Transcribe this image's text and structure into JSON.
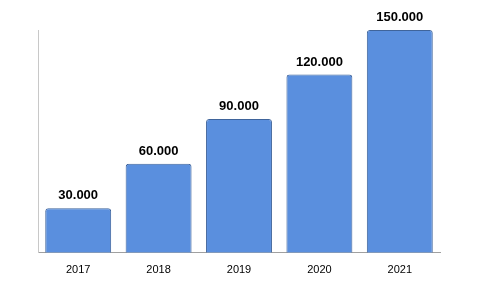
{
  "chart_data": {
    "type": "bar",
    "categories": [
      "2017",
      "2018",
      "2019",
      "2020",
      "2021"
    ],
    "values": [
      30000,
      60000,
      90000,
      120000,
      150000
    ],
    "value_labels": [
      "30.000",
      "60.000",
      "90.000",
      "120.000",
      "150.000"
    ],
    "color": "#5a8fde",
    "ylim": [
      0,
      150000
    ],
    "grid": false,
    "data_labels": true,
    "tick_labels": "x"
  }
}
